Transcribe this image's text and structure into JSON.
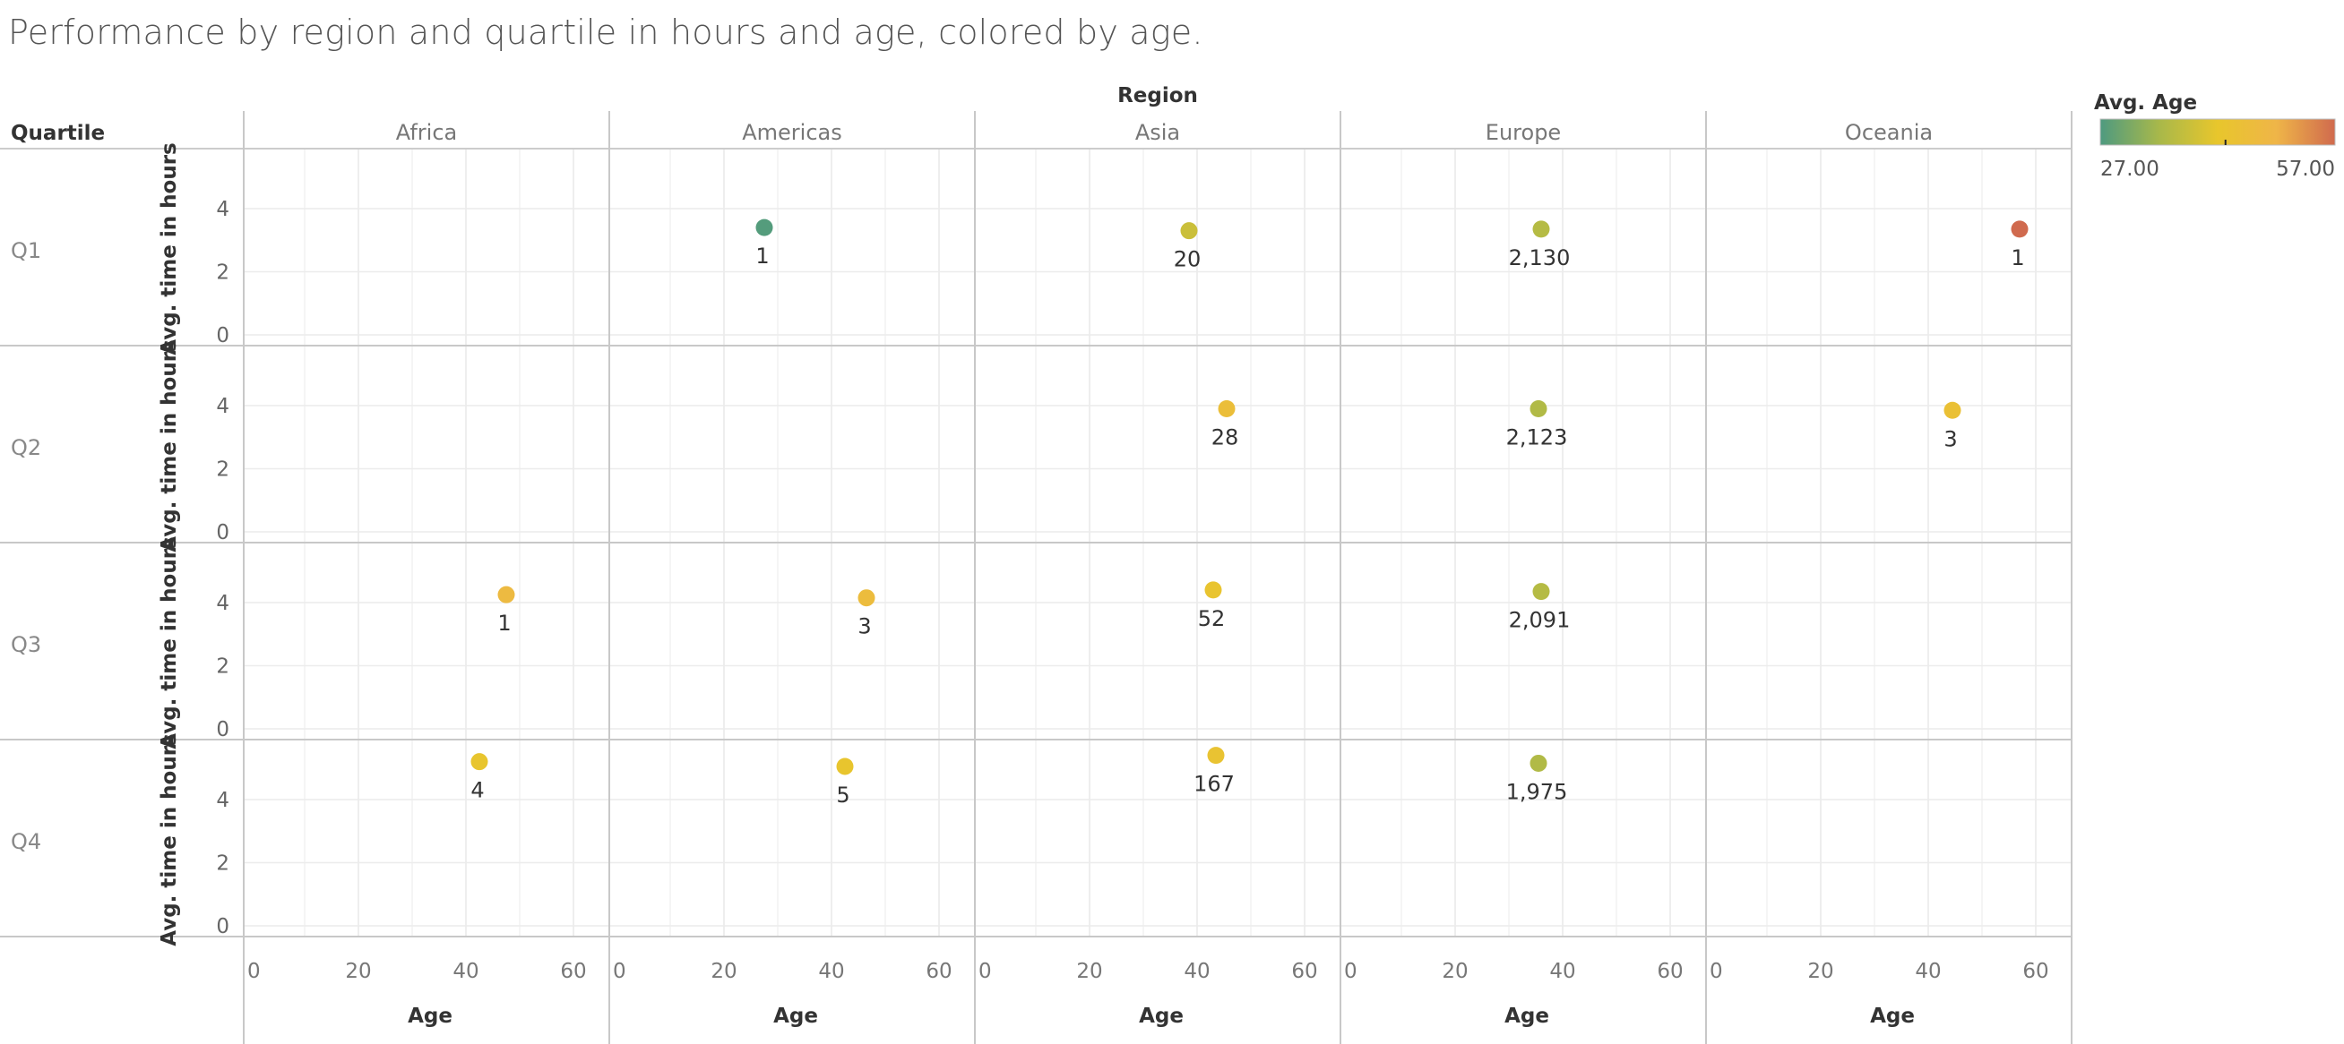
{
  "title": "Performance by region  and quartile in hours and age, colored by age.",
  "chart_data": {
    "type": "scatter",
    "title": "Performance by region  and quartile in hours and age, colored by age.",
    "column_header_label": "Region",
    "row_header_label": "Quartile",
    "columns": [
      "Africa",
      "Americas",
      "Asia",
      "Europe",
      "Oceania"
    ],
    "rows": [
      "Q1",
      "Q2",
      "Q3",
      "Q4"
    ],
    "xlabel": "Age",
    "ylabel": "Avg. time in hours",
    "xlim": [
      0,
      60
    ],
    "ylim": [
      0,
      5.9
    ],
    "x_ticks": [
      "0",
      "20",
      "40",
      "60"
    ],
    "y_ticks": [
      "0",
      "2",
      "4"
    ],
    "grid": true,
    "legend": {
      "title": "Avg. Age",
      "min_label": "27.00",
      "max_label": "57.00",
      "min": 27,
      "max": 57,
      "marker_value": 43,
      "placement": "top-right"
    },
    "colors": [
      "#4E9A80",
      "#A8B84A",
      "#E8C62C",
      "#EFB548",
      "#D06A4E"
    ],
    "points": [
      {
        "row": "Q1",
        "col": "Americas",
        "age": 27.5,
        "hours": 3.4,
        "label": "1"
      },
      {
        "row": "Q1",
        "col": "Asia",
        "age": 38.5,
        "hours": 3.3,
        "label": "20"
      },
      {
        "row": "Q1",
        "col": "Europe",
        "age": 36,
        "hours": 3.35,
        "label": "2,130"
      },
      {
        "row": "Q1",
        "col": "Oceania",
        "age": 57,
        "hours": 3.35,
        "label": "1"
      },
      {
        "row": "Q2",
        "col": "Asia",
        "age": 45.5,
        "hours": 3.9,
        "label": "28"
      },
      {
        "row": "Q2",
        "col": "Europe",
        "age": 35.5,
        "hours": 3.9,
        "label": "2,123"
      },
      {
        "row": "Q2",
        "col": "Oceania",
        "age": 44.5,
        "hours": 3.85,
        "label": "3"
      },
      {
        "row": "Q3",
        "col": "Africa",
        "age": 47.5,
        "hours": 4.25,
        "label": "1"
      },
      {
        "row": "Q3",
        "col": "Americas",
        "age": 46.5,
        "hours": 4.15,
        "label": "3"
      },
      {
        "row": "Q3",
        "col": "Asia",
        "age": 43,
        "hours": 4.4,
        "label": "52"
      },
      {
        "row": "Q3",
        "col": "Europe",
        "age": 36,
        "hours": 4.35,
        "label": "2,091"
      },
      {
        "row": "Q4",
        "col": "Africa",
        "age": 42.5,
        "hours": 5.2,
        "label": "4"
      },
      {
        "row": "Q4",
        "col": "Americas",
        "age": 42.5,
        "hours": 5.05,
        "label": "5"
      },
      {
        "row": "Q4",
        "col": "Asia",
        "age": 43.5,
        "hours": 5.4,
        "label": "167"
      },
      {
        "row": "Q4",
        "col": "Europe",
        "age": 35.5,
        "hours": 5.15,
        "label": "1,975"
      }
    ]
  }
}
